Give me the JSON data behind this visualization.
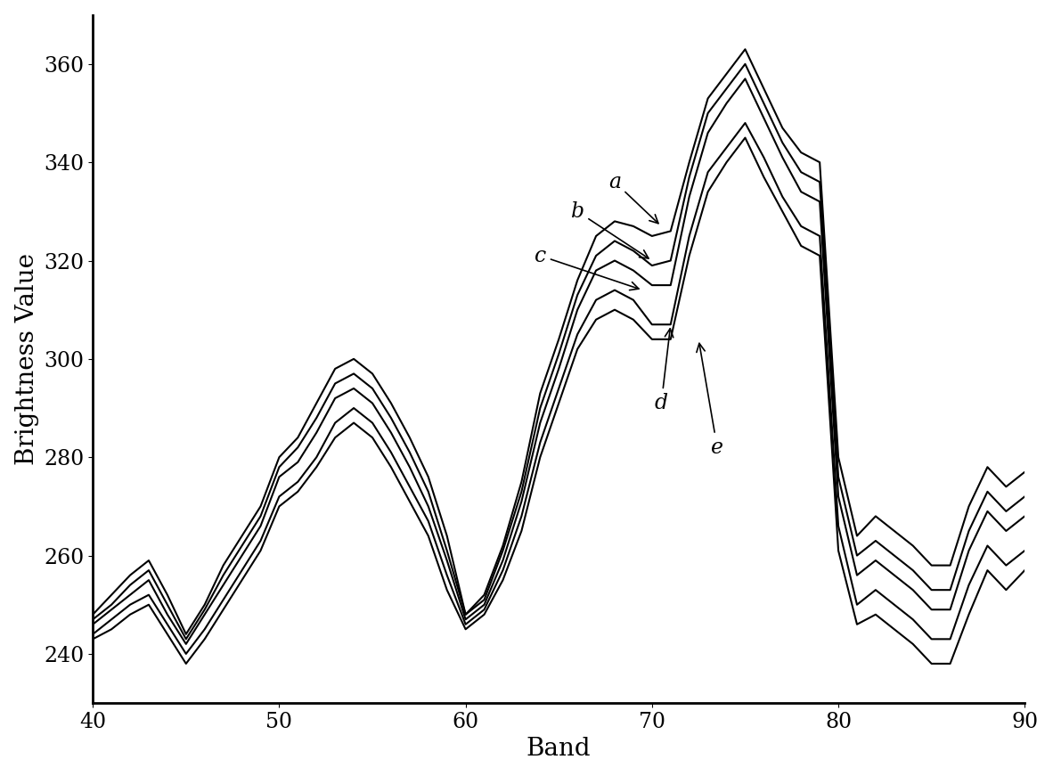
{
  "title": "",
  "xlabel": "Band",
  "ylabel": "Brightness Value",
  "xlim": [
    40,
    90
  ],
  "ylim": [
    230,
    370
  ],
  "xticks": [
    40,
    50,
    60,
    70,
    80,
    90
  ],
  "yticks": [
    240,
    260,
    280,
    300,
    320,
    340,
    360
  ],
  "x": [
    40,
    41,
    42,
    43,
    44,
    45,
    46,
    47,
    48,
    49,
    50,
    51,
    52,
    53,
    54,
    55,
    56,
    57,
    58,
    59,
    60,
    61,
    62,
    63,
    64,
    65,
    66,
    67,
    68,
    69,
    70,
    71,
    72,
    73,
    74,
    75,
    76,
    77,
    78,
    79,
    80,
    81,
    82,
    83,
    84,
    85,
    86,
    87,
    88,
    89,
    90
  ],
  "curves": {
    "a": [
      248,
      252,
      256,
      259,
      252,
      244,
      250,
      258,
      264,
      270,
      280,
      284,
      291,
      298,
      300,
      297,
      291,
      284,
      276,
      264,
      248,
      252,
      262,
      275,
      293,
      304,
      316,
      325,
      328,
      327,
      325,
      326,
      340,
      353,
      358,
      363,
      355,
      347,
      342,
      340,
      280,
      264,
      268,
      265,
      262,
      258,
      258,
      270,
      278,
      274,
      277
    ],
    "b": [
      247,
      250,
      254,
      257,
      250,
      243,
      249,
      256,
      262,
      268,
      278,
      282,
      288,
      295,
      297,
      294,
      288,
      281,
      273,
      261,
      248,
      251,
      261,
      273,
      290,
      301,
      313,
      321,
      324,
      322,
      319,
      320,
      337,
      350,
      355,
      360,
      352,
      344,
      338,
      336,
      276,
      260,
      263,
      260,
      257,
      253,
      253,
      265,
      273,
      269,
      272
    ],
    "c": [
      246,
      249,
      252,
      255,
      248,
      242,
      248,
      254,
      260,
      266,
      276,
      279,
      285,
      292,
      294,
      291,
      285,
      278,
      270,
      259,
      247,
      250,
      259,
      271,
      287,
      298,
      310,
      318,
      320,
      318,
      315,
      315,
      333,
      346,
      352,
      357,
      349,
      341,
      334,
      332,
      272,
      256,
      259,
      256,
      253,
      249,
      249,
      261,
      269,
      265,
      268
    ],
    "d": [
      244,
      247,
      250,
      252,
      246,
      240,
      245,
      251,
      257,
      263,
      272,
      275,
      280,
      287,
      290,
      287,
      281,
      274,
      267,
      256,
      246,
      249,
      257,
      268,
      283,
      294,
      305,
      312,
      314,
      312,
      307,
      307,
      325,
      338,
      343,
      348,
      341,
      333,
      327,
      325,
      266,
      250,
      253,
      250,
      247,
      243,
      243,
      254,
      262,
      258,
      261
    ],
    "e": [
      243,
      245,
      248,
      250,
      244,
      238,
      243,
      249,
      255,
      261,
      270,
      273,
      278,
      284,
      287,
      284,
      278,
      271,
      264,
      253,
      245,
      248,
      255,
      265,
      280,
      291,
      302,
      308,
      310,
      308,
      304,
      304,
      321,
      334,
      340,
      345,
      337,
      330,
      323,
      321,
      261,
      246,
      248,
      245,
      242,
      238,
      238,
      248,
      257,
      253,
      257
    ]
  },
  "ann_config": [
    [
      "a",
      68.0,
      336,
      70.5,
      327
    ],
    [
      "b",
      66.0,
      330,
      70.0,
      320
    ],
    [
      "c",
      64.0,
      321,
      69.5,
      314
    ],
    [
      "d",
      70.5,
      291,
      71.0,
      307
    ],
    [
      "e",
      73.5,
      282,
      72.5,
      304
    ]
  ],
  "line_color": "#000000",
  "line_width": 1.5,
  "annotation_fontsize": 17,
  "axis_fontsize": 20,
  "tick_fontsize": 17
}
